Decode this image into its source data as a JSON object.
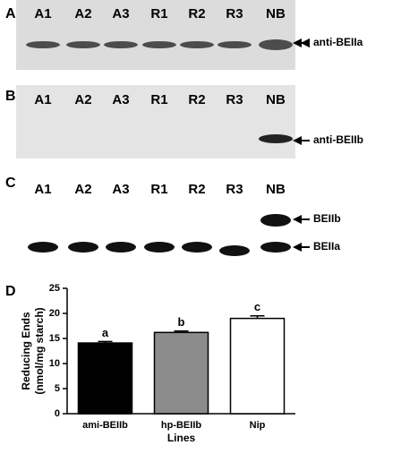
{
  "panels": {
    "A": {
      "label": "A",
      "lanes": [
        "A1",
        "A2",
        "A3",
        "R1",
        "R2",
        "R3",
        "NB"
      ],
      "arrows": [
        "anti-BEIIa"
      ]
    },
    "B": {
      "label": "B",
      "lanes": [
        "A1",
        "A2",
        "A3",
        "R1",
        "R2",
        "R3",
        "NB"
      ],
      "arrows": [
        "anti-BEIIb"
      ]
    },
    "C": {
      "label": "C",
      "lanes": [
        "A1",
        "A2",
        "A3",
        "R1",
        "R2",
        "R3",
        "NB"
      ],
      "arrows": [
        "BEIIb",
        "BEIIa"
      ]
    }
  },
  "chart_data": {
    "type": "bar",
    "panel_label": "D",
    "categories": [
      "ami-BEIIb",
      "hp-BEIIb",
      "Nip"
    ],
    "values": [
      14.1,
      16.2,
      19.0
    ],
    "errors": [
      0.3,
      0.3,
      0.5
    ],
    "annotations": [
      "a",
      "b",
      "c"
    ],
    "colors": [
      "#000000",
      "#8c8c8c",
      "#ffffff"
    ],
    "ylabel": [
      "Reducing Ends",
      "(nmol/mg starch)"
    ],
    "xlabel": "Lines",
    "ylim": [
      0,
      25
    ],
    "yticks": [
      0,
      5,
      10,
      15,
      20,
      25
    ]
  }
}
